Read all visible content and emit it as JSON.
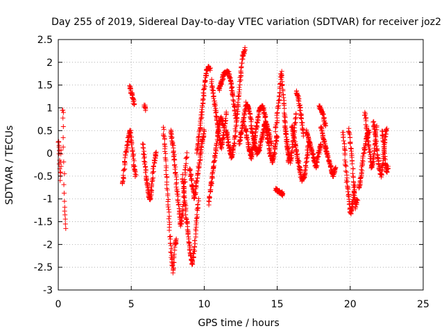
{
  "chart_data": {
    "type": "scatter",
    "title": "Day 255 of 2019, Sidereal Day-to-day VTEC variation (SDTVAR) for receiver joz2",
    "xlabel": "GPS time / hours",
    "ylabel": "SDTVAR / TECUs",
    "xlim": [
      0,
      25
    ],
    "ylim": [
      -3,
      2.5
    ],
    "grid": true,
    "marker": "plus",
    "color": "#ff0000",
    "xticks": [
      0,
      5,
      10,
      15,
      20,
      25
    ],
    "xtick_labels": [
      "0",
      "5",
      "10",
      "15",
      "20",
      "25"
    ],
    "yticks": [
      -3,
      -2.5,
      -2,
      -1.5,
      -1,
      -0.5,
      0,
      0.5,
      1,
      1.5,
      2,
      2.5
    ],
    "ytick_labels": [
      "-3",
      "-2.5",
      "-2",
      "-1.5",
      "-1",
      "-0.5",
      "0",
      "0.5",
      "1",
      "1.5",
      "2",
      "2.5"
    ],
    "series": [
      {
        "name": "SDTVAR",
        "segments": [
          {
            "x0": 0.0,
            "x1": 0.2,
            "y": [
              0.3,
              0.2,
              0.0,
              -0.3,
              -0.6,
              -0.3,
              0.1
            ]
          },
          {
            "x0": 0.3,
            "x1": 0.5,
            "y": [
              0.95,
              0.85,
              0.2,
              -0.6,
              -1.1,
              -1.4,
              -1.65
            ]
          },
          {
            "x0": 4.4,
            "x1": 5.3,
            "y": [
              -0.7,
              -0.3,
              0.1,
              0.3,
              0.5,
              0.2,
              -0.2,
              -0.5
            ]
          },
          {
            "x0": 4.9,
            "x1": 5.2,
            "y": [
              1.5,
              1.35,
              1.2,
              1.05
            ]
          },
          {
            "x0": 5.9,
            "x1": 6.0,
            "y": [
              1.05,
              0.95
            ]
          },
          {
            "x0": 5.8,
            "x1": 6.7,
            "y": [
              0.2,
              -0.2,
              -0.6,
              -0.9,
              -1.0,
              -0.6,
              -0.2,
              0.0
            ]
          },
          {
            "x0": 7.2,
            "x1": 8.1,
            "y": [
              0.55,
              0.1,
              -0.5,
              -1.1,
              -1.8,
              -2.3,
              -2.6,
              -2.0,
              -1.9
            ]
          },
          {
            "x0": 7.7,
            "x1": 8.8,
            "y": [
              0.5,
              0.2,
              -0.2,
              -0.7,
              -1.2,
              -1.6,
              -1.3,
              -0.6,
              0.0
            ]
          },
          {
            "x0": 8.5,
            "x1": 9.6,
            "y": [
              -0.5,
              -0.9,
              -1.4,
              -1.8,
              -2.2,
              -2.45,
              -2.1,
              -1.5,
              -1.0
            ]
          },
          {
            "x0": 9.0,
            "x1": 10.0,
            "y": [
              -0.3,
              -0.7,
              -1.0,
              -0.6,
              -0.2,
              0.2,
              0.5
            ]
          },
          {
            "x0": 9.5,
            "x1": 10.4,
            "y": [
              0.0,
              0.4,
              0.8,
              1.3,
              1.7,
              1.9,
              1.85
            ]
          },
          {
            "x0": 10.3,
            "x1": 11.3,
            "y": [
              -1.1,
              -0.7,
              -0.3,
              0.1,
              0.5,
              0.8,
              0.6
            ]
          },
          {
            "x0": 10.5,
            "x1": 11.5,
            "y": [
              1.6,
              1.2,
              0.8,
              0.4,
              0.1,
              0.4,
              0.9
            ]
          },
          {
            "x0": 11.0,
            "x1": 12.2,
            "y": [
              1.4,
              1.55,
              1.75,
              1.8,
              1.75,
              1.5,
              1.1,
              0.7
            ]
          },
          {
            "x0": 11.5,
            "x1": 12.8,
            "y": [
              0.5,
              0.2,
              -0.1,
              0.2,
              0.8,
              1.5,
              2.1,
              2.3
            ]
          },
          {
            "x0": 12.4,
            "x1": 13.2,
            "y": [
              0.2,
              0.5,
              0.8,
              1.1,
              1.0,
              0.7
            ]
          },
          {
            "x0": 12.8,
            "x1": 14.2,
            "y": [
              0.6,
              0.2,
              -0.1,
              0.2,
              0.6,
              1.0,
              1.05,
              0.8
            ]
          },
          {
            "x0": 13.2,
            "x1": 14.6,
            "y": [
              0.6,
              0.3,
              0.0,
              0.1,
              0.4,
              0.7,
              0.5,
              0.2
            ]
          },
          {
            "x0": 14.2,
            "x1": 15.0,
            "y": [
              0.6,
              0.3,
              0.0,
              -0.2,
              0.1,
              0.4
            ]
          },
          {
            "x0": 14.9,
            "x1": 15.4,
            "y": [
              -0.8,
              -0.9
            ]
          },
          {
            "x0": 14.9,
            "x1": 15.8,
            "y": [
              0.5,
              0.9,
              1.3,
              1.8,
              1.3,
              0.7,
              0.2,
              -0.2
            ]
          },
          {
            "x0": 15.5,
            "x1": 16.3,
            "y": [
              0.8,
              0.3,
              0.0,
              -0.2,
              0.1,
              0.5,
              0.9
            ]
          },
          {
            "x0": 16.3,
            "x1": 16.8,
            "y": [
              1.35,
              1.2,
              0.8,
              0.4
            ]
          },
          {
            "x0": 16.0,
            "x1": 17.2,
            "y": [
              0.6,
              0.3,
              0.0,
              -0.3,
              -0.6,
              -0.5,
              -0.1,
              0.3
            ]
          },
          {
            "x0": 17.0,
            "x1": 18.0,
            "y": [
              0.5,
              0.3,
              0.1,
              -0.1,
              -0.3,
              0.0,
              0.2
            ]
          },
          {
            "x0": 17.9,
            "x1": 18.3,
            "y": [
              1.05,
              0.9,
              0.6
            ]
          },
          {
            "x0": 18.0,
            "x1": 19.0,
            "y": [
              0.6,
              0.3,
              0.1,
              -0.1,
              -0.3,
              -0.5,
              -0.3
            ]
          },
          {
            "x0": 19.5,
            "x1": 20.3,
            "y": [
              0.5,
              0.0,
              -0.6,
              -1.0,
              -1.35,
              -1.1,
              -0.7
            ]
          },
          {
            "x0": 19.9,
            "x1": 20.5,
            "y": [
              0.55,
              0.2,
              -0.2,
              -0.8,
              -1.2,
              -1.0
            ]
          },
          {
            "x0": 20.6,
            "x1": 21.3,
            "y": [
              -0.75,
              -0.5,
              -0.1,
              0.2,
              0.4,
              0.5
            ]
          },
          {
            "x0": 21.0,
            "x1": 21.8,
            "y": [
              0.9,
              0.6,
              0.3,
              0.0,
              -0.3,
              -0.2,
              0.2,
              0.6
            ]
          },
          {
            "x0": 21.6,
            "x1": 22.5,
            "y": [
              0.7,
              0.4,
              0.0,
              -0.3,
              -0.5,
              -0.2,
              0.3,
              0.55
            ]
          },
          {
            "x0": 22.2,
            "x1": 22.6,
            "y": [
              0.5,
              0.2,
              -0.2,
              -0.4,
              -0.3
            ]
          }
        ]
      }
    ]
  }
}
